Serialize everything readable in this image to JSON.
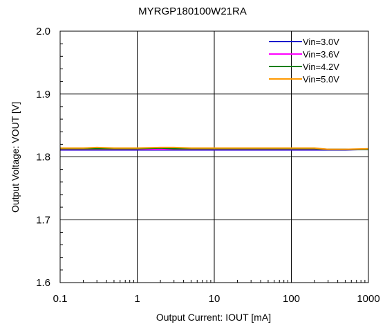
{
  "chart_data": {
    "type": "line",
    "title": "MYRGP180100W21RA",
    "xlabel": "Output  Current: IOUT [mA]",
    "ylabel": "Output  Voltage: VOUT [V]",
    "x_scale": "log",
    "xlim": [
      0.1,
      1000
    ],
    "ylim": [
      1.6,
      2.0
    ],
    "x_ticks": [
      "0.1",
      "1",
      "10",
      "100",
      "1000"
    ],
    "y_ticks": [
      "1.6",
      "1.7",
      "1.8",
      "1.9",
      "2.0"
    ],
    "grid": true,
    "legend_position": "top-right",
    "x": [
      0.1,
      0.2,
      0.3,
      0.5,
      1,
      2,
      3,
      5,
      10,
      20,
      50,
      100,
      200,
      300,
      500,
      1000
    ],
    "series": [
      {
        "name": "Vin=3.0V",
        "color": "#0000cc",
        "values": [
          1.811,
          1.811,
          1.811,
          1.811,
          1.811,
          1.811,
          1.811,
          1.811,
          1.811,
          1.811,
          1.811,
          1.811,
          1.811,
          1.811,
          1.811,
          1.812
        ]
      },
      {
        "name": "Vin=3.6V",
        "color": "#ff00ff",
        "values": [
          1.812,
          1.812,
          1.812,
          1.812,
          1.812,
          1.812,
          1.812,
          1.812,
          1.812,
          1.812,
          1.812,
          1.812,
          1.812,
          1.812,
          1.812,
          1.812
        ]
      },
      {
        "name": "Vin=4.2V",
        "color": "#008000",
        "values": [
          1.813,
          1.813,
          1.813,
          1.813,
          1.813,
          1.814,
          1.813,
          1.813,
          1.813,
          1.813,
          1.813,
          1.813,
          1.813,
          1.812,
          1.812,
          1.812
        ]
      },
      {
        "name": "Vin=5.0V",
        "color": "#ff9900",
        "values": [
          1.814,
          1.814,
          1.815,
          1.814,
          1.814,
          1.815,
          1.815,
          1.814,
          1.814,
          1.814,
          1.814,
          1.814,
          1.814,
          1.812,
          1.812,
          1.813
        ]
      }
    ]
  }
}
